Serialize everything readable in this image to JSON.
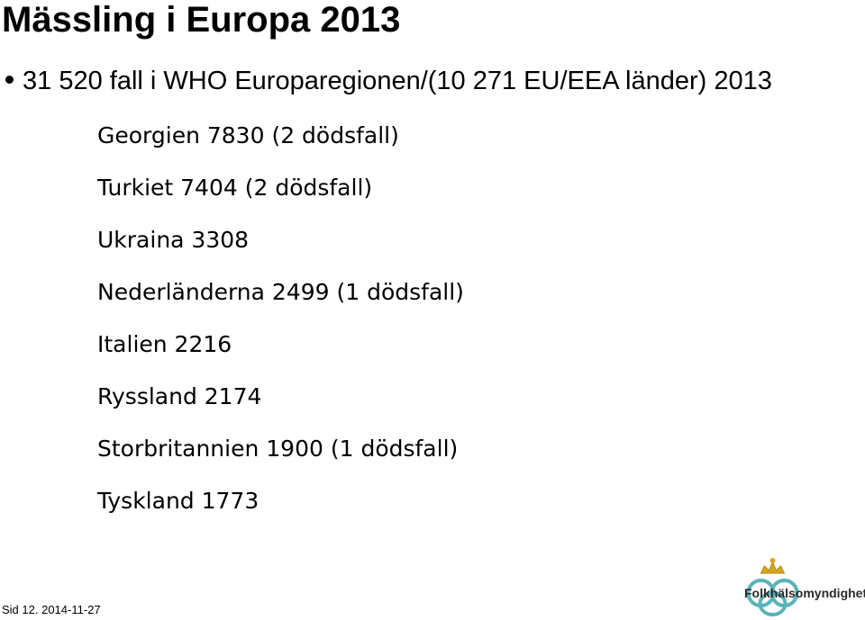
{
  "header": {
    "title": "Mässling i Europa 2013"
  },
  "bullet": "31 520 fall i WHO Europaregionen/(10 271 EU/EEA länder) 2013",
  "items": [
    "Georgien 7830 (2 dödsfall)",
    "Turkiet 7404 (2 dödsfall)",
    "Ukraina 3308",
    "Nederländerna 2499 (1 dödsfall)",
    "Italien 2216",
    "Ryssland 2174",
    "Storbritannien 1900 (1 dödsfall)",
    "Tyskland 1773"
  ],
  "footer": "Sid 12. 2014-11-27",
  "logo": "Folkhälsomyndigheten"
}
